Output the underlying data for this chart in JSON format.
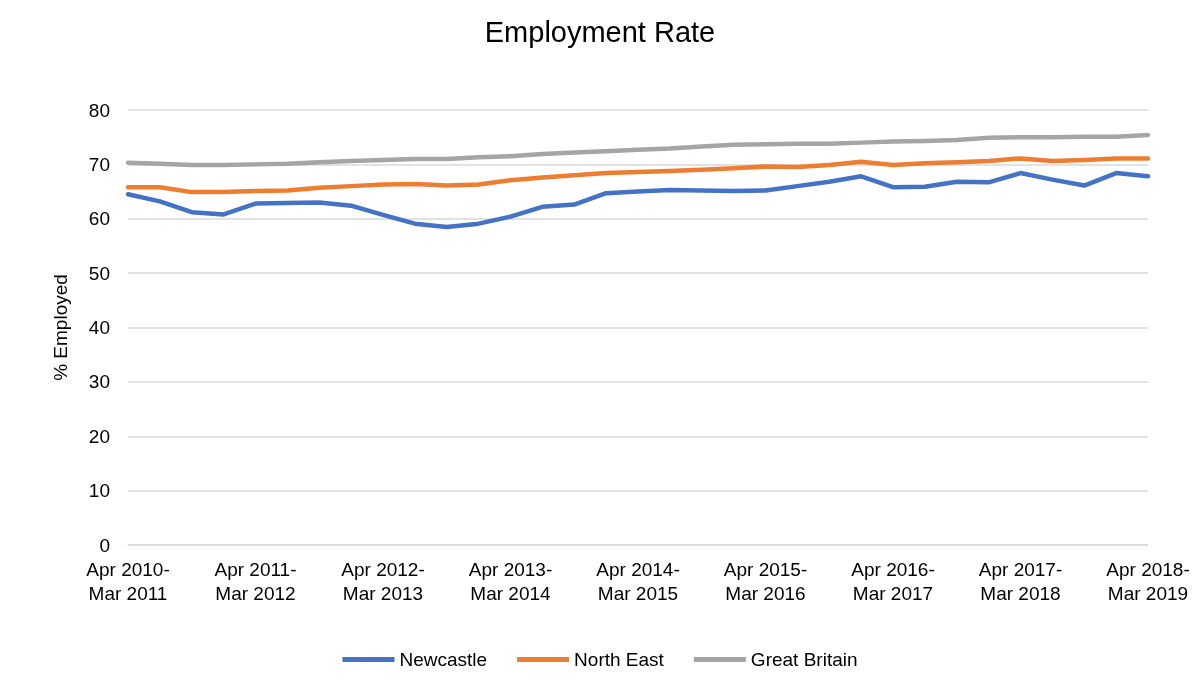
{
  "chart_data": {
    "type": "line",
    "title": "Employment Rate",
    "ylabel": "% Employed",
    "categories": [
      "Apr 2010-\nMar 2011",
      null,
      null,
      null,
      "Apr 2011-\nMar 2012",
      null,
      null,
      null,
      "Apr 2012-\nMar 2013",
      null,
      null,
      null,
      "Apr 2013-\nMar 2014",
      null,
      null,
      null,
      "Apr 2014-\nMar 2015",
      null,
      null,
      null,
      "Apr 2015-\nMar 2016",
      null,
      null,
      null,
      "Apr 2016-\nMar 2017",
      null,
      null,
      null,
      "Apr 2017-\nMar 2018",
      null,
      null,
      null,
      "Apr 2018-\nMar 2019"
    ],
    "series": [
      {
        "name": "Newcastle",
        "color": "#4472c4",
        "values": [
          64.5,
          63.2,
          61.2,
          60.8,
          62.8,
          62.9,
          63.0,
          62.4,
          60.7,
          59.1,
          58.5,
          59.1,
          60.4,
          62.2,
          62.6,
          64.7,
          65.0,
          65.3,
          65.2,
          65.1,
          65.2,
          66.0,
          66.8,
          67.8,
          65.8,
          65.9,
          66.8,
          66.7,
          68.4,
          67.2,
          66.1,
          68.4,
          67.8
        ]
      },
      {
        "name": "North East",
        "color": "#ed7d31",
        "values": [
          65.8,
          65.8,
          64.9,
          64.9,
          65.1,
          65.2,
          65.7,
          66.0,
          66.3,
          66.4,
          66.1,
          66.3,
          67.1,
          67.6,
          68.0,
          68.4,
          68.6,
          68.8,
          69.0,
          69.3,
          69.6,
          69.5,
          69.9,
          70.5,
          69.9,
          70.2,
          70.4,
          70.6,
          71.1,
          70.6,
          70.8,
          71.1,
          71.1
        ]
      },
      {
        "name": "Great Britain",
        "color": "#a5a5a5",
        "values": [
          70.3,
          70.1,
          69.9,
          69.9,
          70.0,
          70.1,
          70.4,
          70.6,
          70.8,
          71.0,
          71.0,
          71.3,
          71.5,
          71.9,
          72.2,
          72.4,
          72.7,
          72.9,
          73.3,
          73.6,
          73.7,
          73.8,
          73.8,
          74.0,
          74.2,
          74.3,
          74.5,
          74.9,
          75.0,
          75.0,
          75.1,
          75.1,
          75.4
        ]
      }
    ],
    "ylim": [
      0,
      80
    ],
    "yticks": [
      0,
      10,
      20,
      30,
      40,
      50,
      60,
      70,
      80
    ],
    "grid": "y",
    "legend": "bottom",
    "marker": "none",
    "line_style": "solid"
  }
}
